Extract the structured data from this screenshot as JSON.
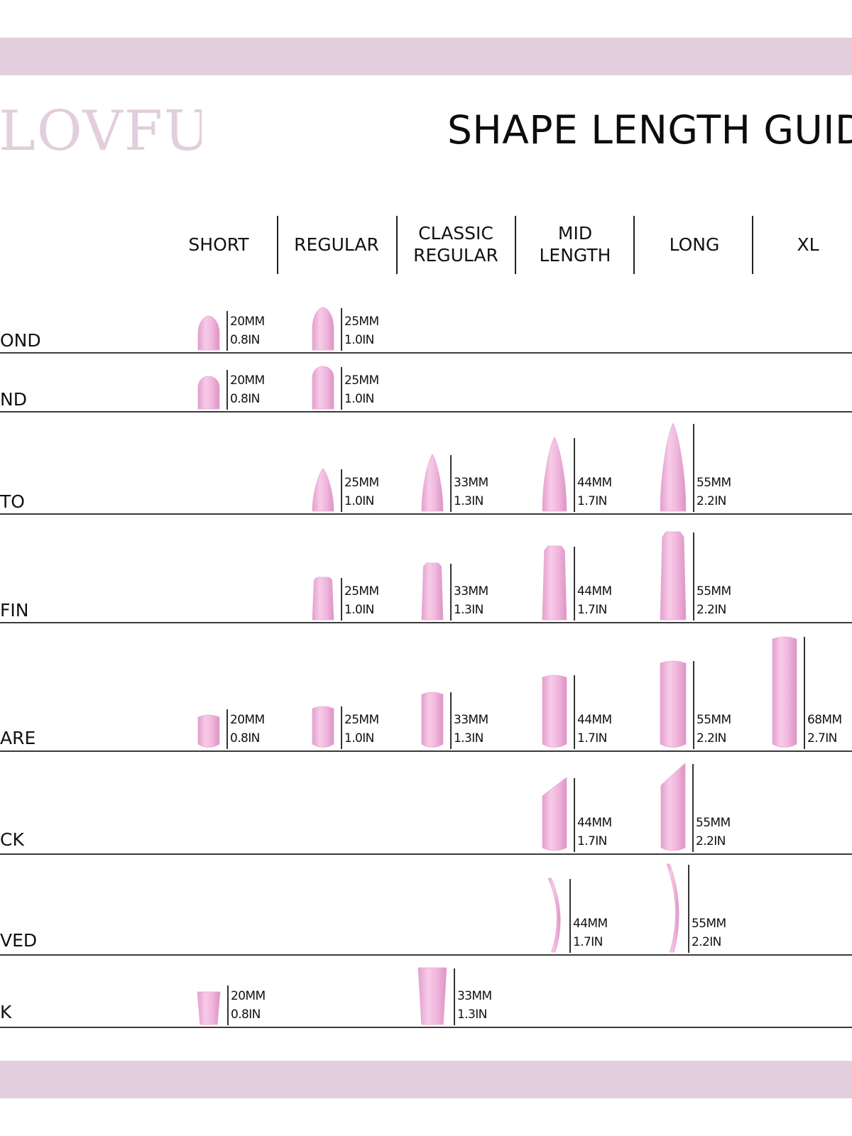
{
  "brand": {
    "logo_text": "LOVFUL",
    "band_color": "#e2cedd",
    "nail_color": "#f0b6dc"
  },
  "title": "SHAPE LENGTH GUID",
  "columns": [
    "SHORT",
    "REGULAR",
    "CLASSIC\nREGULAR",
    "MID\nLENGTH",
    "LONG",
    "XL"
  ],
  "rows": [
    {
      "label": "OND",
      "shape": "almond",
      "sizes": [
        {
          "col": 0,
          "mm": "20MM",
          "in": "0.8IN"
        },
        {
          "col": 1,
          "mm": "25MM",
          "in": "1.0IN"
        }
      ]
    },
    {
      "label": "ND",
      "shape": "round",
      "sizes": [
        {
          "col": 0,
          "mm": "20MM",
          "in": "0.8IN"
        },
        {
          "col": 1,
          "mm": "25MM",
          "in": "1.0IN"
        }
      ]
    },
    {
      "label": "TO",
      "shape": "stiletto",
      "sizes": [
        {
          "col": 1,
          "mm": "25MM",
          "in": "1.0IN"
        },
        {
          "col": 2,
          "mm": "33MM",
          "in": "1.3IN"
        },
        {
          "col": 3,
          "mm": "44MM",
          "in": "1.7IN"
        },
        {
          "col": 4,
          "mm": "55MM",
          "in": "2.2IN"
        }
      ]
    },
    {
      "label": "FIN",
      "shape": "coffin",
      "sizes": [
        {
          "col": 1,
          "mm": "25MM",
          "in": "1.0IN"
        },
        {
          "col": 2,
          "mm": "33MM",
          "in": "1.3IN"
        },
        {
          "col": 3,
          "mm": "44MM",
          "in": "1.7IN"
        },
        {
          "col": 4,
          "mm": "55MM",
          "in": "2.2IN"
        }
      ]
    },
    {
      "label": "ARE",
      "shape": "square",
      "sizes": [
        {
          "col": 0,
          "mm": "20MM",
          "in": "0.8IN"
        },
        {
          "col": 1,
          "mm": "25MM",
          "in": "1.0IN"
        },
        {
          "col": 2,
          "mm": "33MM",
          "in": "1.3IN"
        },
        {
          "col": 3,
          "mm": "44MM",
          "in": "1.7IN"
        },
        {
          "col": 4,
          "mm": "55MM",
          "in": "2.2IN"
        },
        {
          "col": 5,
          "mm": "68MM",
          "in": "2.7IN"
        }
      ]
    },
    {
      "label": "CK",
      "shape": "slanted",
      "sizes": [
        {
          "col": 3,
          "mm": "44MM",
          "in": "1.7IN"
        },
        {
          "col": 4,
          "mm": "55MM",
          "in": "2.2IN"
        }
      ]
    },
    {
      "label": "VED",
      "shape": "curved",
      "sizes": [
        {
          "col": 3,
          "mm": "44MM",
          "in": "1.7IN"
        },
        {
          "col": 4,
          "mm": "55MM",
          "in": "2.2IN"
        }
      ]
    },
    {
      "label": "K",
      "shape": "tapered",
      "sizes": [
        {
          "col": 0,
          "mm": "20MM",
          "in": "0.8IN"
        },
        {
          "col": 2,
          "mm": "33MM",
          "in": "1.3IN"
        }
      ]
    }
  ]
}
